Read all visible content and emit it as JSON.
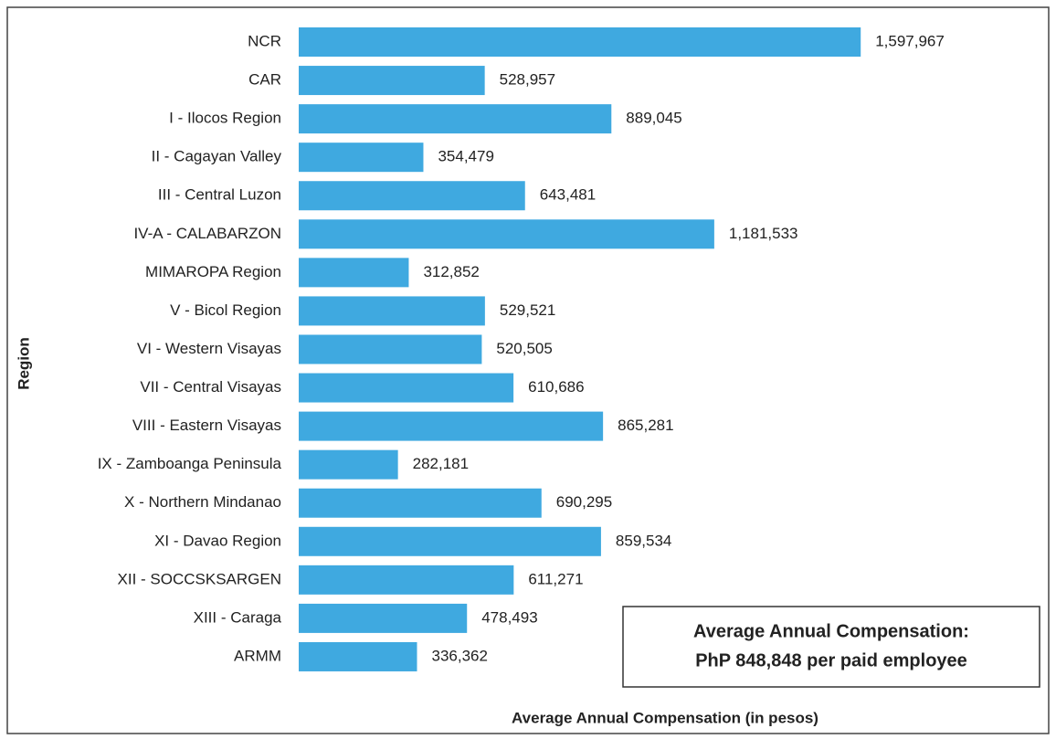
{
  "chart_data": {
    "type": "bar",
    "orientation": "horizontal",
    "x_label": "Average Annual Compensation (in pesos)",
    "y_label": "Region",
    "categories": [
      "NCR",
      "CAR",
      "I - Ilocos Region",
      "II - Cagayan Valley",
      "III - Central Luzon",
      "IV-A - CALABARZON",
      "MIMAROPA Region",
      "V - Bicol Region",
      "VI - Western Visayas",
      "VII - Central Visayas",
      "VIII - Eastern Visayas",
      "IX - Zamboanga Peninsula",
      "X - Northern Mindanao",
      "XI - Davao Region",
      "XII - SOCCSKSARGEN",
      "XIII - Caraga",
      "ARMM"
    ],
    "values": [
      1597967,
      528957,
      889045,
      354479,
      643481,
      1181533,
      312852,
      529521,
      520505,
      610686,
      865281,
      282181,
      690295,
      859534,
      611271,
      478493,
      336362
    ],
    "value_labels": [
      "1,597,967",
      "528,957",
      "889,045",
      "354,479",
      "643,481",
      "1,181,533",
      "312,852",
      "529,521",
      "520,505",
      "610,686",
      "865,281",
      "282,181",
      "690,295",
      "859,534",
      "611,271",
      "478,493",
      "336,362"
    ],
    "color": "#3fa9e0",
    "xlim": [
      0,
      2000000
    ],
    "annotation": [
      "Average Annual Compensation:",
      "PhP 848,848 per paid employee"
    ]
  }
}
